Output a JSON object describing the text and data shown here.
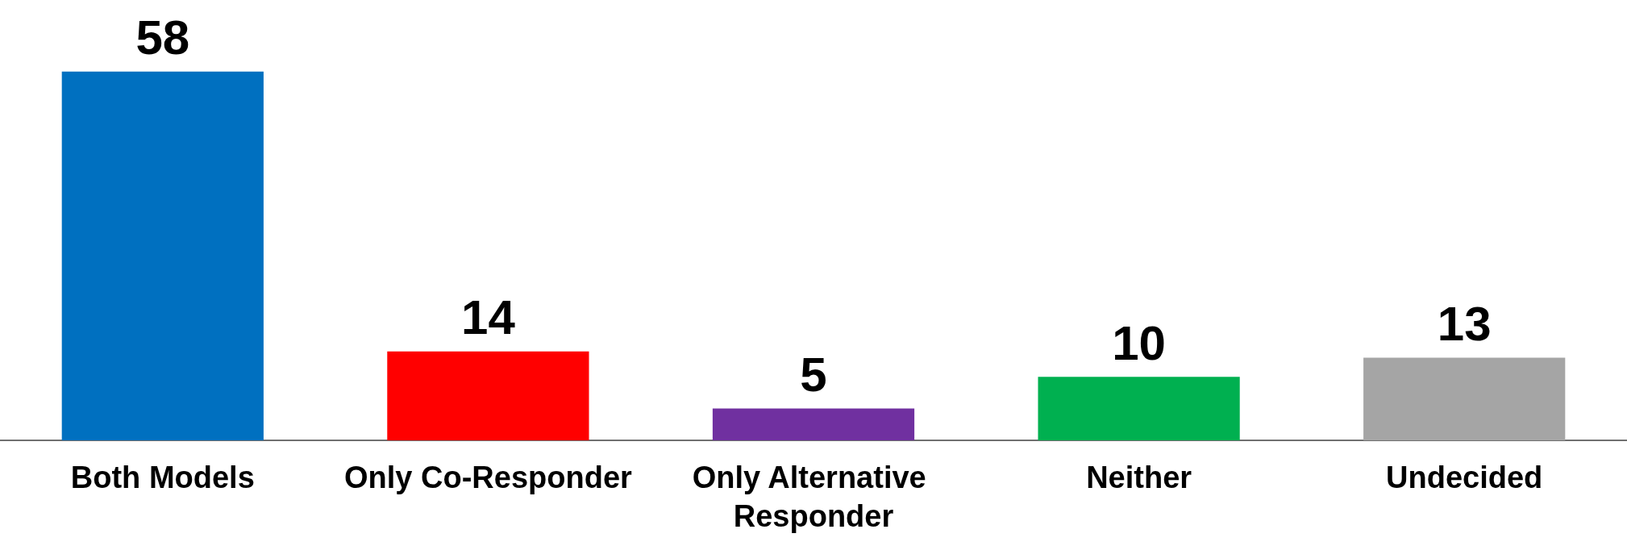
{
  "chart_data": {
    "type": "bar",
    "categories": [
      "Both Models",
      "Only Co-Responder",
      "Only Alternative Responder",
      "Neither",
      "Undecided"
    ],
    "values": [
      58,
      14,
      5,
      10,
      13
    ],
    "colors": [
      "#0070c0",
      "#ff0000",
      "#7030a0",
      "#00b050",
      "#a5a5a5"
    ],
    "data_labels": true
  }
}
